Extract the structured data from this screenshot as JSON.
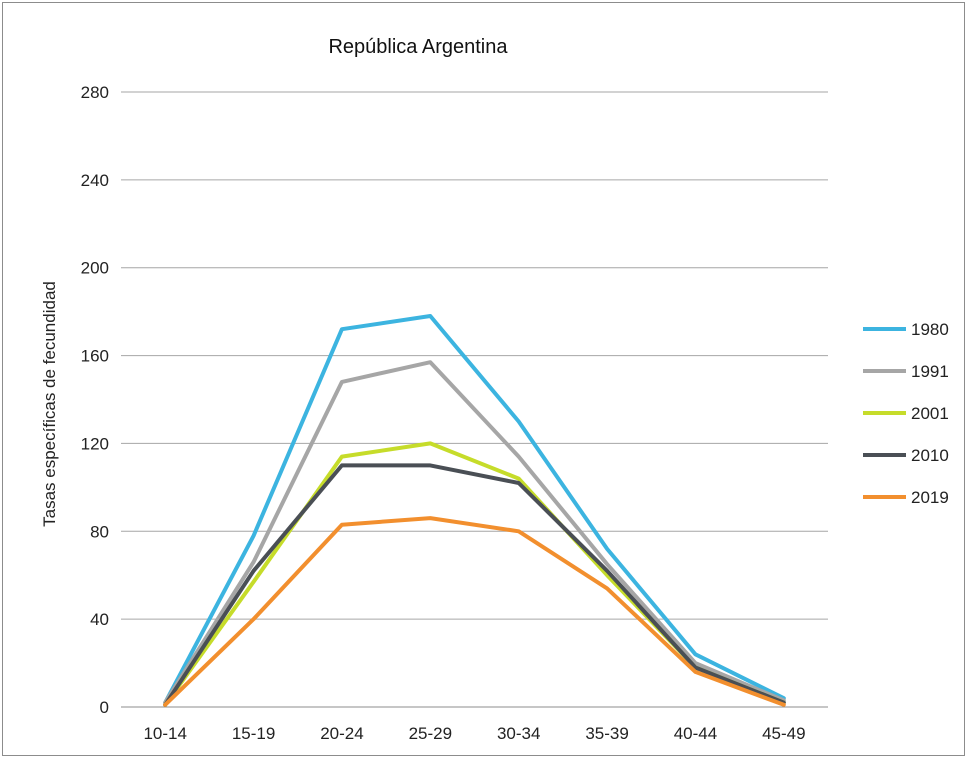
{
  "chart_data": {
    "type": "line",
    "title": "República Argentina",
    "xlabel": "",
    "ylabel": "Tasas específicas de fecundidad",
    "categories": [
      "10-14",
      "15-19",
      "20-24",
      "25-29",
      "30-34",
      "35-39",
      "40-44",
      "45-49"
    ],
    "ylim": [
      0,
      280
    ],
    "yticks": [
      0,
      40,
      80,
      120,
      160,
      200,
      240,
      280
    ],
    "grid": true,
    "legend_position": "right",
    "series": [
      {
        "name": "1980",
        "color": "#3cb4e0",
        "values": [
          2,
          78,
          172,
          178,
          130,
          72,
          24,
          4
        ]
      },
      {
        "name": "1991",
        "color": "#a6a6a6",
        "values": [
          2,
          66,
          148,
          157,
          114,
          65,
          20,
          3
        ]
      },
      {
        "name": "2001",
        "color": "#c6dc2a",
        "values": [
          1,
          57,
          114,
          120,
          104,
          60,
          18,
          2
        ]
      },
      {
        "name": "2010",
        "color": "#4a4f55",
        "values": [
          1,
          62,
          110,
          110,
          102,
          62,
          18,
          2
        ]
      },
      {
        "name": "2019",
        "color": "#f28f2e",
        "values": [
          1,
          40,
          83,
          86,
          80,
          54,
          16,
          1
        ]
      }
    ]
  }
}
